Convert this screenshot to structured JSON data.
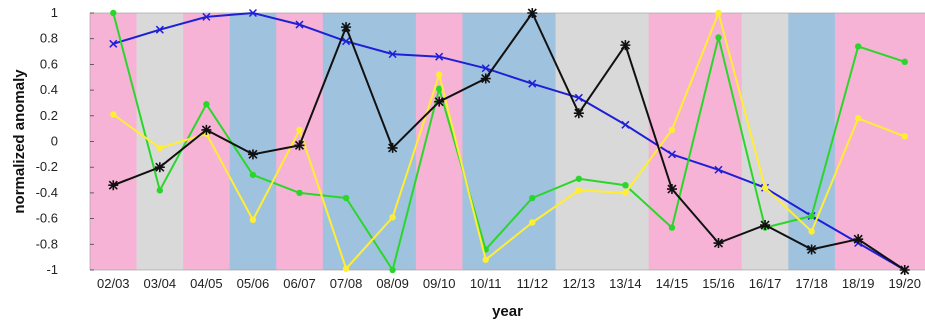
{
  "chart_data": {
    "type": "line",
    "title": "",
    "xlabel": "year",
    "ylabel": "normalized anomaly",
    "ylim": [
      -1,
      1
    ],
    "yticks": [
      -1,
      -0.8,
      -0.6,
      -0.4,
      -0.2,
      0,
      0.2,
      0.4,
      0.6,
      0.8,
      1
    ],
    "ytick_labels": [
      "-1",
      "-0.8",
      "-0.6",
      "-0.4",
      "-0.2",
      "0",
      "0.2",
      "0.4",
      "0.6",
      "0.8",
      "1"
    ],
    "categories": [
      "02/03",
      "03/04",
      "04/05",
      "05/06",
      "06/07",
      "07/08",
      "08/09",
      "09/10",
      "10/11",
      "11/12",
      "12/13",
      "13/14",
      "14/15",
      "15/16",
      "16/17",
      "17/18",
      "18/19",
      "19/20"
    ],
    "background_bands": [
      "pink",
      "gray",
      "pink",
      "blue",
      "pink",
      "blue",
      "blue",
      "pink",
      "blue",
      "blue",
      "gray",
      "gray",
      "pink",
      "pink",
      "gray",
      "blue",
      "pink",
      "pink"
    ],
    "band_colors": {
      "pink": "#f7b3d5",
      "gray": "#d9d9d9",
      "blue": "#9fc3df"
    },
    "grid": false,
    "legend": "none",
    "series": [
      {
        "color": "#1f1fd6",
        "marker": "x",
        "values": [
          0.76,
          0.87,
          0.97,
          1.0,
          0.91,
          0.78,
          0.68,
          0.66,
          0.57,
          0.45,
          0.34,
          0.13,
          -0.1,
          -0.22,
          -0.36,
          -0.58,
          -0.79,
          -1.0
        ]
      },
      {
        "color": "#2bd62b",
        "marker": "dot",
        "values": [
          1.0,
          -0.38,
          0.29,
          -0.26,
          -0.4,
          -0.44,
          -1.0,
          0.41,
          -0.84,
          -0.44,
          -0.29,
          -0.34,
          -0.67,
          0.81,
          -0.67,
          -0.58,
          0.74,
          0.62
        ]
      },
      {
        "color": "#ffee33",
        "marker": "dot",
        "values": [
          0.21,
          -0.05,
          0.06,
          -0.61,
          0.09,
          -0.99,
          -0.59,
          0.52,
          -0.92,
          -0.63,
          -0.38,
          -0.4,
          0.09,
          1.0,
          -0.36,
          -0.7,
          0.18,
          0.04
        ]
      },
      {
        "color": "#111111",
        "marker": "star",
        "values": [
          -0.34,
          -0.2,
          0.09,
          -0.1,
          -0.03,
          0.89,
          -0.05,
          0.31,
          0.49,
          1.0,
          0.22,
          0.75,
          -0.37,
          -0.79,
          -0.65,
          -0.84,
          -0.76,
          -1.0
        ]
      }
    ]
  }
}
